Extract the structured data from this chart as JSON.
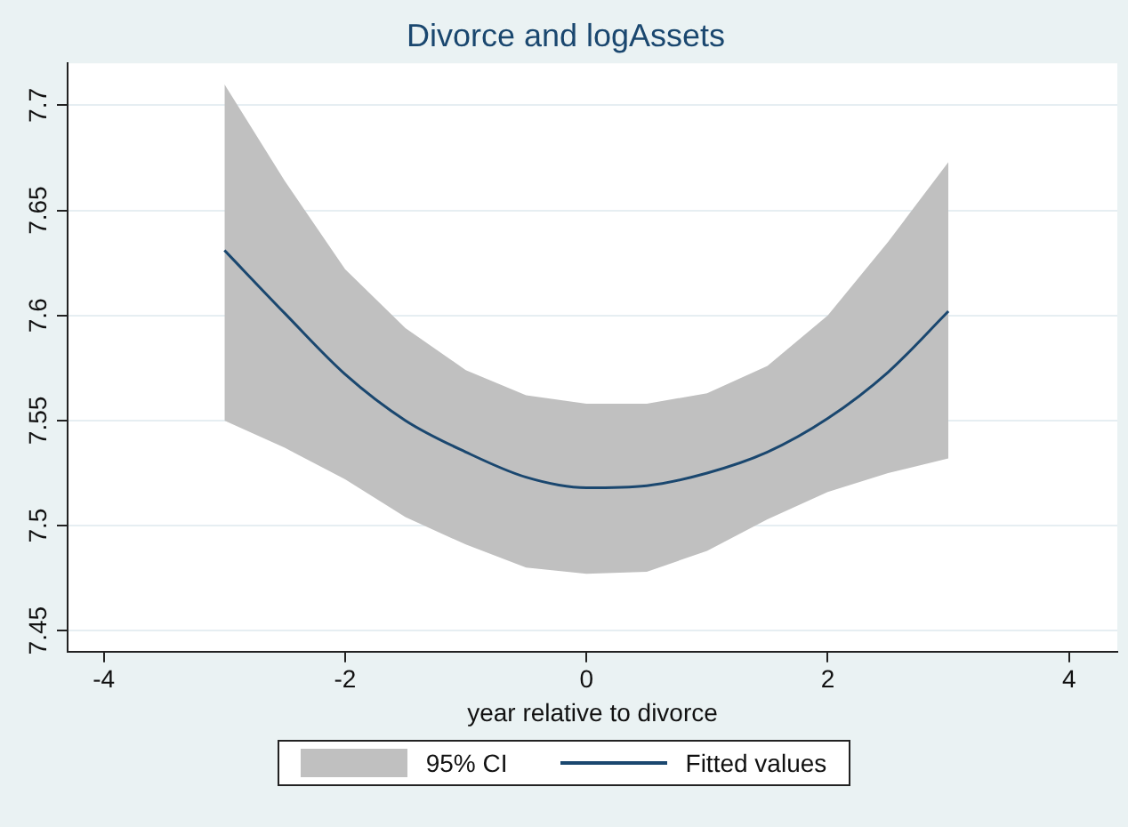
{
  "chart_data": {
    "type": "line",
    "title": "Divorce and logAssets",
    "xlabel": "year relative to divorce",
    "xlim": [
      -4.3,
      4.4
    ],
    "xticks": [
      -4,
      -2,
      0,
      2,
      4
    ],
    "ylim": [
      7.44,
      7.72
    ],
    "yticks": [
      7.45,
      7.5,
      7.55,
      7.6,
      7.65,
      7.7
    ],
    "grid": "y",
    "legend": "bottom",
    "marker": "none",
    "line_style": "solid",
    "annotations": [
      "95% CI"
    ],
    "x": [
      -3,
      -2.5,
      -2,
      -1.5,
      -1,
      -0.5,
      0,
      0.5,
      1,
      1.5,
      2,
      2.5,
      3
    ],
    "series": [
      {
        "name": "Fitted values",
        "color": "#1a476f",
        "values": [
          7.631,
          7.601,
          7.572,
          7.55,
          7.535,
          7.523,
          7.518,
          7.519,
          7.525,
          7.535,
          7.551,
          7.573,
          7.602
        ],
        "lower": [
          7.55,
          7.537,
          7.522,
          7.504,
          7.491,
          7.48,
          7.477,
          7.478,
          7.488,
          7.503,
          7.516,
          7.525,
          7.532
        ],
        "upper": [
          7.71,
          7.664,
          7.622,
          7.594,
          7.574,
          7.562,
          7.558,
          7.558,
          7.563,
          7.576,
          7.6,
          7.635,
          7.673
        ]
      }
    ]
  }
}
